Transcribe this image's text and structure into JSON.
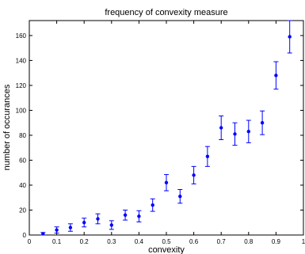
{
  "chart_data": {
    "type": "scatter",
    "title": "frequency of convexity measure",
    "xlabel": "convexity",
    "ylabel": "number of occurances",
    "xlim": [
      0,
      1
    ],
    "ylim": [
      0,
      172
    ],
    "x_ticks": [
      "0",
      "0.1",
      "0.2",
      "0.3",
      "0.4",
      "0.5",
      "0.6",
      "0.7",
      "0.8",
      "0.9",
      "1"
    ],
    "y_ticks": [
      "0",
      "20",
      "40",
      "60",
      "80",
      "100",
      "120",
      "140",
      "160"
    ],
    "grid": false,
    "legend": "none",
    "series": [
      {
        "color": "#0000ff",
        "marker": "dot-with-errorbars",
        "x": [
          0.05,
          0.1,
          0.15,
          0.2,
          0.25,
          0.3,
          0.35,
          0.4,
          0.45,
          0.5,
          0.55,
          0.6,
          0.65,
          0.7,
          0.75,
          0.8,
          0.85,
          0.9,
          0.95
        ],
        "y": [
          1,
          4,
          6,
          10,
          13,
          8,
          16,
          15,
          24,
          42,
          31,
          48,
          63,
          86,
          81,
          83,
          90,
          128,
          159
        ],
        "err": [
          1,
          2.5,
          3,
          3.5,
          4,
          3.5,
          4,
          4.5,
          5,
          6.5,
          5.5,
          7,
          8,
          9.5,
          9,
          9,
          9.5,
          11,
          13
        ]
      }
    ]
  }
}
